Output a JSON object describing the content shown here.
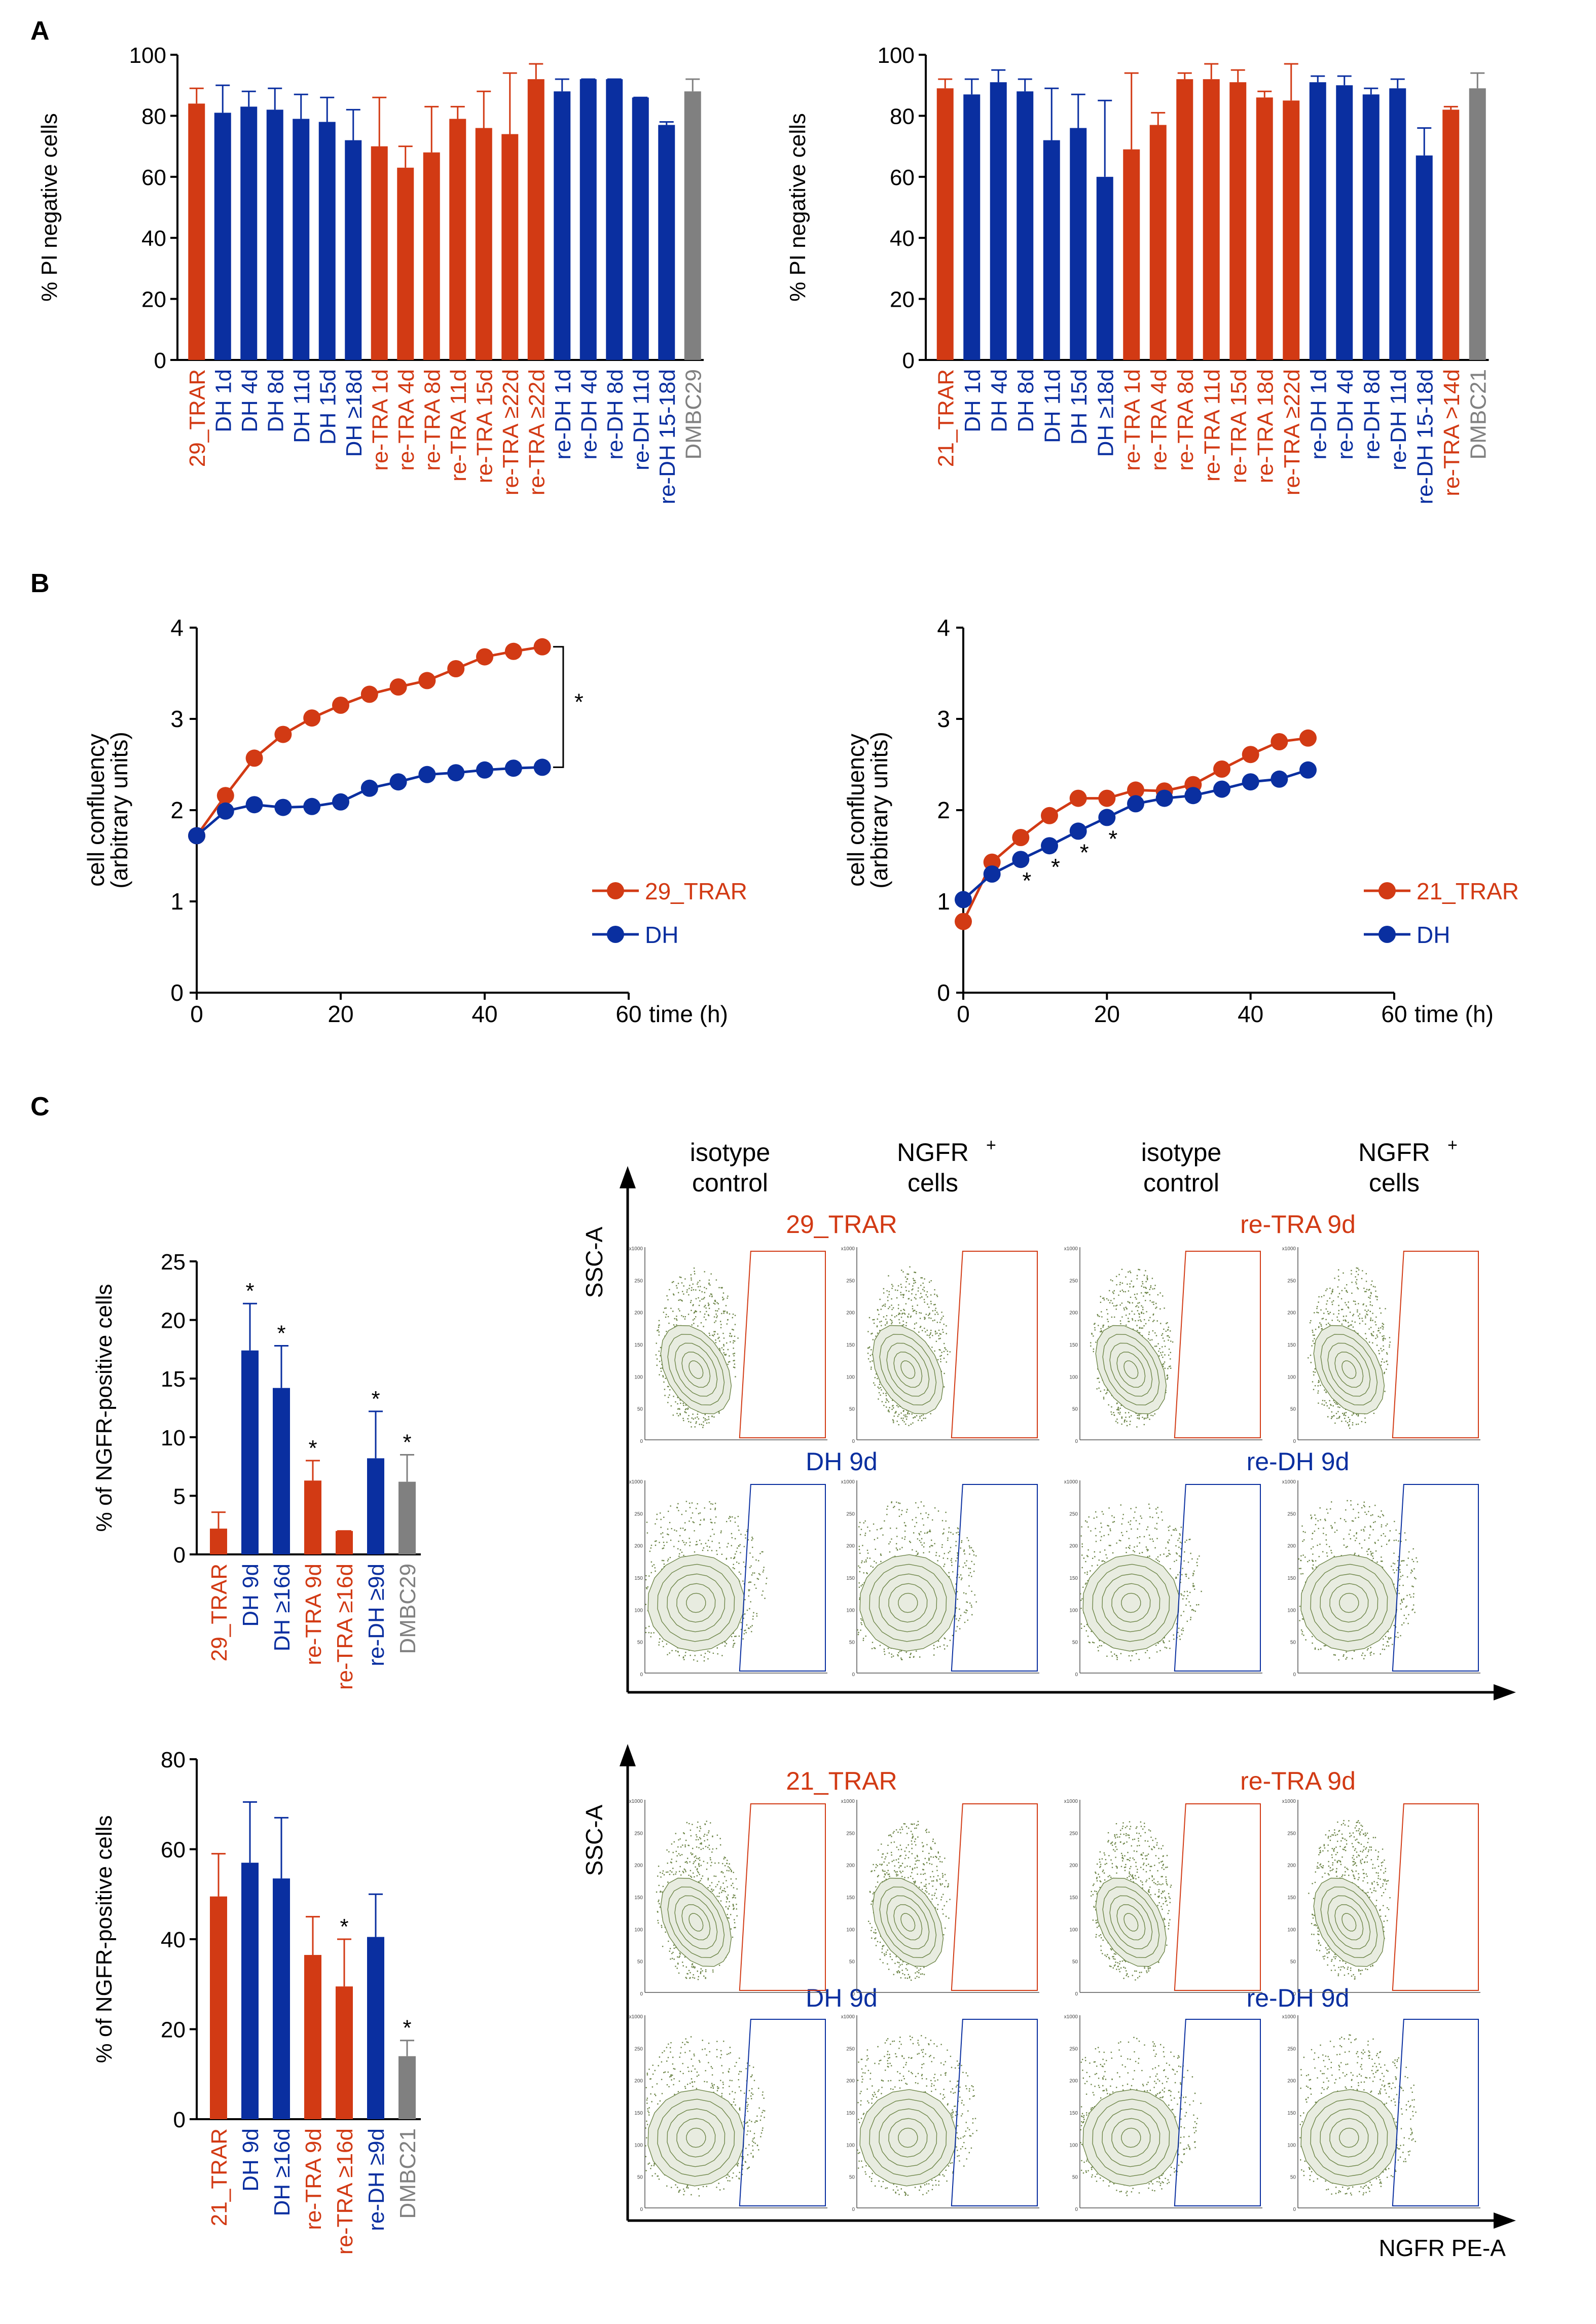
{
  "colors": {
    "trar": "#d23a14",
    "dh": "#0a2fa0",
    "ctrl": "#808080",
    "axis": "#000000",
    "flow": "#6d8548",
    "contour": "#e8ece0"
  },
  "panel_labels": {
    "a": "A",
    "b": "B",
    "c": "C"
  },
  "chart_data": [
    {
      "id": "a1",
      "type": "bar",
      "ylabel": "% PI negative cells",
      "ylim": [
        0,
        100
      ],
      "yticks": [
        0,
        20,
        40,
        60,
        80,
        100
      ],
      "categories": [
        "29_TRAR",
        "DH 1d",
        "DH 4d",
        "DH 8d",
        "DH 11d",
        "DH 15d",
        "DH ≥18d",
        "re-TRA 1d",
        "re-TRA 4d",
        "re-TRA 8d",
        "re-TRA 11d",
        "re-TRA 15d",
        "re-TRA ≥22d",
        "re-TRA ≥22d",
        "re-DH 1d",
        "re-DH 4d",
        "re-DH 8d",
        "re-DH 11d",
        "re-DH 15-18d",
        "DMBC29"
      ],
      "groups": [
        "trar",
        "dh",
        "dh",
        "dh",
        "dh",
        "dh",
        "dh",
        "trar",
        "trar",
        "trar",
        "trar",
        "trar",
        "trar",
        "trar",
        "dh",
        "dh",
        "dh",
        "dh",
        "dh",
        "ctrl"
      ],
      "values": [
        84,
        81,
        83,
        82,
        79,
        78,
        72,
        70,
        63,
        68,
        79,
        76,
        74,
        92,
        88,
        92,
        92,
        86,
        77,
        88
      ],
      "errors": [
        5,
        9,
        5,
        7,
        8,
        8,
        10,
        16,
        7,
        15,
        4,
        12,
        20,
        5,
        4,
        0,
        0,
        0,
        1,
        4
      ]
    },
    {
      "id": "a2",
      "type": "bar",
      "ylabel": "% PI negative cells",
      "ylim": [
        0,
        100
      ],
      "yticks": [
        0,
        20,
        40,
        60,
        80,
        100
      ],
      "categories": [
        "21_TRAR",
        "DH 1d",
        "DH 4d",
        "DH 8d",
        "DH 11d",
        "DH 15d",
        "DH ≥18d",
        "re-TRA 1d",
        "re-TRA 4d",
        "re-TRA 8d",
        "re-TRA 11d",
        "re-TRA 15d",
        "re-TRA 18d",
        "re-TRA ≥22d",
        "re-DH 1d",
        "re-DH 4d",
        "re-DH 8d",
        "re-DH 11d",
        "re-DH 15-18d",
        "re-TRA  >14d",
        "DMBC21"
      ],
      "groups": [
        "trar",
        "dh",
        "dh",
        "dh",
        "dh",
        "dh",
        "dh",
        "trar",
        "trar",
        "trar",
        "trar",
        "trar",
        "trar",
        "trar",
        "dh",
        "dh",
        "dh",
        "dh",
        "dh",
        "trar",
        "ctrl"
      ],
      "values": [
        89,
        87,
        91,
        88,
        72,
        76,
        60,
        69,
        77,
        92,
        92,
        91,
        86,
        85,
        91,
        90,
        87,
        89,
        67,
        82,
        89
      ],
      "errors": [
        3,
        5,
        4,
        4,
        17,
        11,
        25,
        25,
        4,
        2,
        5,
        4,
        2,
        12,
        2,
        3,
        2,
        3,
        9,
        1,
        5
      ]
    },
    {
      "id": "b1",
      "type": "line",
      "xlabel": "time (h)",
      "ylabel": "cell confluency",
      "ylabel2": "(arbitrary units)",
      "xlim": [
        0,
        60
      ],
      "ylim": [
        0,
        4
      ],
      "xticks": [
        0,
        20,
        40,
        60
      ],
      "yticks": [
        0,
        1,
        2,
        3,
        4
      ],
      "x": [
        0,
        4,
        8,
        12,
        16,
        20,
        24,
        28,
        32,
        36,
        40,
        44,
        48
      ],
      "series": [
        {
          "name": "29_TRAR",
          "group": "trar",
          "values": [
            1.72,
            2.16,
            2.57,
            2.83,
            3.01,
            3.15,
            3.27,
            3.35,
            3.42,
            3.55,
            3.68,
            3.74,
            3.79
          ]
        },
        {
          "name": "DH",
          "group": "dh",
          "values": [
            1.72,
            1.99,
            2.06,
            2.03,
            2.04,
            2.09,
            2.24,
            2.31,
            2.39,
            2.41,
            2.44,
            2.46,
            2.47
          ]
        }
      ],
      "annotations": [
        "*"
      ]
    },
    {
      "id": "b2",
      "type": "line",
      "xlabel": "time (h)",
      "ylabel": "cell confluency",
      "ylabel2": "(arbitrary units)",
      "xlim": [
        0,
        60
      ],
      "ylim": [
        0,
        4
      ],
      "xticks": [
        0,
        20,
        40,
        60
      ],
      "yticks": [
        0,
        1,
        2,
        3,
        4
      ],
      "x": [
        0,
        4,
        8,
        12,
        16,
        20,
        24,
        28,
        32,
        36,
        40,
        44,
        48
      ],
      "series": [
        {
          "name": "21_TRAR",
          "group": "trar",
          "values": [
            0.78,
            1.43,
            1.7,
            1.94,
            2.13,
            2.13,
            2.22,
            2.21,
            2.28,
            2.45,
            2.61,
            2.75,
            2.79
          ]
        },
        {
          "name": "DH",
          "group": "dh",
          "values": [
            1.02,
            1.3,
            1.46,
            1.61,
            1.77,
            1.92,
            2.07,
            2.13,
            2.16,
            2.23,
            2.31,
            2.34,
            2.44
          ]
        }
      ],
      "annotations": [
        "*",
        "*",
        "*",
        "*"
      ]
    },
    {
      "id": "c1",
      "type": "bar",
      "ylabel": "% of NGFR-positive cells",
      "ylim": [
        0,
        25
      ],
      "yticks": [
        0,
        5,
        10,
        15,
        20,
        25
      ],
      "categories": [
        "29_TRAR",
        "DH 9d",
        "DH ≥16d",
        "re-TRA 9d",
        "re-TRA ≥16d",
        "re-DH ≥9d",
        "DMBC29"
      ],
      "groups": [
        "trar",
        "dh",
        "dh",
        "trar",
        "trar",
        "dh",
        "ctrl"
      ],
      "values": [
        2.2,
        17.4,
        14.2,
        6.3,
        2.0,
        8.2,
        6.2
      ],
      "errors": [
        1.4,
        4.0,
        3.6,
        1.7,
        0,
        4.0,
        2.3
      ],
      "stars": [
        false,
        true,
        true,
        true,
        false,
        true,
        true
      ]
    },
    {
      "id": "c2",
      "type": "bar",
      "ylabel": "% of NGFR-positive cells",
      "ylim": [
        0,
        80
      ],
      "yticks": [
        0,
        20,
        40,
        60,
        80
      ],
      "categories": [
        "21_TRAR",
        "DH 9d",
        "DH ≥16d",
        "re-TRA 9d",
        "re-TRA ≥16d",
        "re-DH ≥9d",
        "DMBC21"
      ],
      "groups": [
        "trar",
        "dh",
        "dh",
        "trar",
        "trar",
        "dh",
        "ctrl"
      ],
      "values": [
        49.5,
        57,
        53.5,
        36.5,
        29.5,
        40.5,
        14
      ],
      "errors": [
        9.5,
        13.5,
        13.5,
        8.5,
        10.5,
        9.5,
        3.5
      ],
      "stars": [
        false,
        false,
        false,
        false,
        true,
        false,
        true
      ]
    }
  ],
  "flow": {
    "col_headers": [
      {
        "line1": "isotype",
        "line2": "control"
      },
      {
        "line1": "NGFR",
        "sup": "+",
        "line2": "cells"
      },
      {
        "line1": "isotype",
        "line2": "control"
      },
      {
        "line1": "NGFR",
        "sup": "+",
        "line2": "cells"
      }
    ],
    "y_axis_label": "SSC-A",
    "x_axis_label": "NGFR PE-A",
    "top": {
      "row1_left": "29_TRAR",
      "row1_right": "re-TRA 9d",
      "row2_left": "DH 9d",
      "row2_right": "re-DH 9d"
    },
    "bottom": {
      "row1_left": "21_TRAR",
      "row1_right": "re-TRA 9d",
      "row2_left": "DH 9d",
      "row2_right": "re-DH 9d"
    },
    "plot_yticks": [
      "x1000",
      "250",
      "200",
      "150",
      "100",
      "50",
      "0"
    ]
  }
}
